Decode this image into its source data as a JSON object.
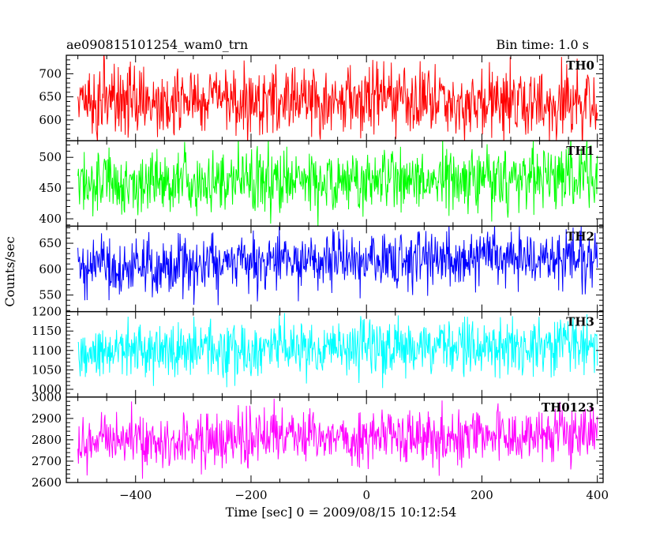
{
  "header": {
    "left_title": "ae090815101254_wam0_trn",
    "right_title": "Bin time: 1.0 s"
  },
  "chart_data": {
    "type": "line",
    "title": "ae090815101254_wam0_trn",
    "subtitle": "Bin time: 1.0 s",
    "xlabel": "Time [sec] 0 = 2009/08/15 10:12:54",
    "ylabel": "Counts/sec",
    "xlim": [
      -520,
      410
    ],
    "x_ticks": [
      -400,
      -200,
      0,
      200,
      400
    ],
    "x_tick_labels": [
      "−400",
      "−200",
      "0",
      "200",
      "400"
    ],
    "x_range": [
      -500,
      400
    ],
    "bin_time_s": 1.0,
    "grid": false,
    "panels": [
      {
        "name": "TH0",
        "color": "#ff0000",
        "ylim": [
          555,
          740
        ],
        "y_ticks": [
          600,
          650,
          700
        ],
        "mean": 640,
        "spread": 38,
        "trend_end": 0
      },
      {
        "name": "TH1",
        "color": "#00ff00",
        "ylim": [
          388,
          527
        ],
        "y_ticks": [
          400,
          450,
          500
        ],
        "mean": 460,
        "spread": 27,
        "trend_end": 6
      },
      {
        "name": "TH2",
        "color": "#0000ff",
        "ylim": [
          518,
          683
        ],
        "y_ticks": [
          550,
          600,
          650
        ],
        "mean": 605,
        "spread": 28,
        "trend_end": 18
      },
      {
        "name": "TH3",
        "color": "#00ffff",
        "ylim": [
          980,
          1200
        ],
        "y_ticks": [
          1000,
          1050,
          1100,
          1150,
          1200
        ],
        "mean": 1100,
        "spread": 36,
        "trend_end": 12
      },
      {
        "name": "TH0123",
        "color": "#ff00ff",
        "ylim": [
          2600,
          3000
        ],
        "y_ticks": [
          2600,
          2700,
          2800,
          2900,
          3000
        ],
        "mean": 2790,
        "spread": 62,
        "trend_end": 45
      }
    ]
  }
}
